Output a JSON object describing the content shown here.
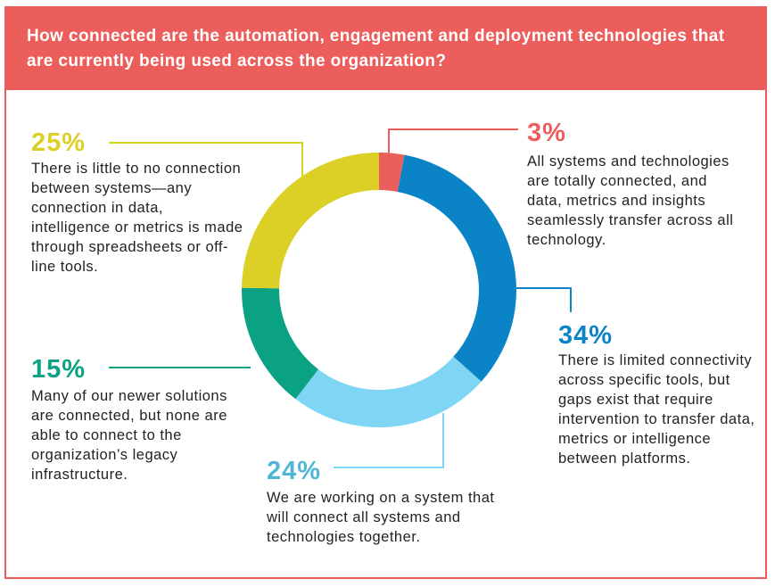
{
  "header": {
    "title": "How connected are the automation, engagement and deployment technologies that are currently being used across the organization?"
  },
  "colors": {
    "header_bg": "#ec5e5b",
    "red": "#ec5e5b",
    "blue": "#0a84c6",
    "light_blue": "#7fd6f4",
    "green": "#0aa283",
    "yellow": "#dcd026"
  },
  "chart_data": {
    "type": "pie",
    "variant": "donut",
    "slices": [
      {
        "label": "3%",
        "value": 3,
        "color": "#ec5e5b",
        "label_color": "#ec5e5b",
        "description": "All systems and technologies are totally connected, and data, metrics and insights seamlessly transfer across all technology."
      },
      {
        "label": "34%",
        "value": 34,
        "color": "#0a84c6",
        "label_color": "#0a84c6",
        "description": "There is limited connectivity across specific tools, but gaps exist that require intervention to transfer data, metrics or intelligence between platforms."
      },
      {
        "label": "24%",
        "value": 24,
        "color": "#7fd6f4",
        "label_color": "#4fb6d8",
        "description": "We are working on a system that will connect all systems and technologies together."
      },
      {
        "label": "15%",
        "value": 15,
        "color": "#0aa283",
        "label_color": "#0aa283",
        "description": "Many of our newer solutions are connected, but none are able to connect to the organization’s legacy infrastructure."
      },
      {
        "label": "25%",
        "value": 25,
        "color": "#dcd026",
        "label_color": "#dcd026",
        "description": "There is little to no connection between systems—any connection in data, intelligence or metrics is made through spreadsheets or off-line tools."
      }
    ]
  }
}
